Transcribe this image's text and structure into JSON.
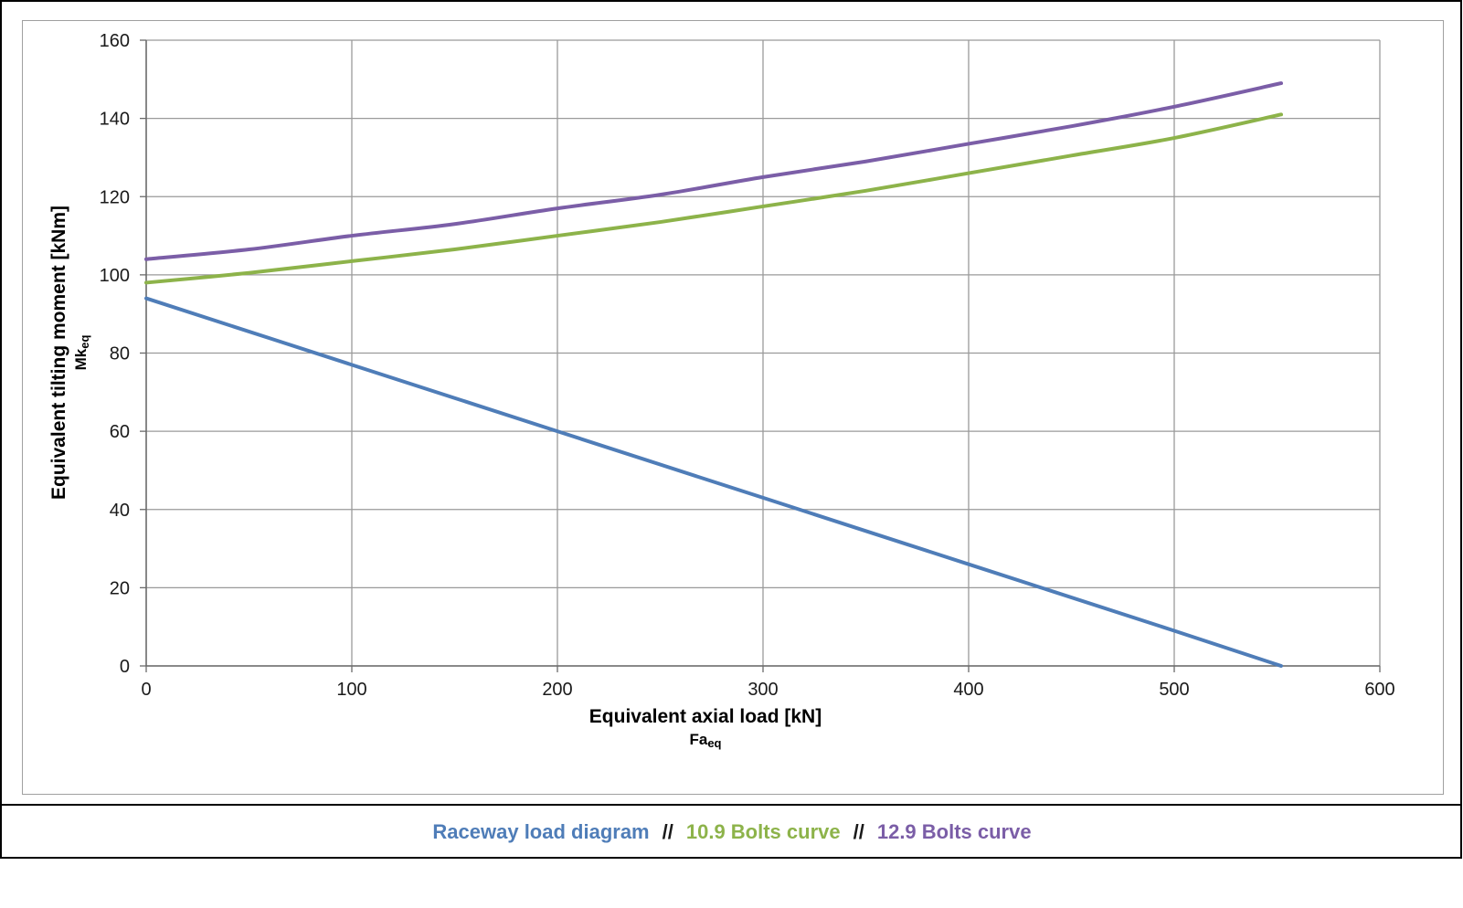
{
  "chart_data": {
    "type": "line",
    "title": "",
    "xlabel": "Equivalent axial load [kN]",
    "xlabel_sub": {
      "base": "Fa",
      "subscript": "eq"
    },
    "ylabel": "Equivalent tilting moment [kNm]",
    "ylabel_sub": {
      "base": "Mk",
      "subscript": "eq"
    },
    "xlim": [
      0,
      600
    ],
    "ylim": [
      0,
      160
    ],
    "xticks": [
      0,
      100,
      200,
      300,
      400,
      500,
      600
    ],
    "yticks": [
      0,
      20,
      40,
      60,
      80,
      100,
      120,
      140,
      160
    ],
    "grid": true,
    "legend_position": "bottom",
    "legend_separator": "//",
    "series": [
      {
        "name": "Raceway load diagram",
        "color": "#4f7db8",
        "x": [
          0,
          100,
          200,
          300,
          400,
          500,
          552
        ],
        "y": [
          94,
          77,
          60,
          43,
          26,
          9,
          0
        ]
      },
      {
        "name": "10.9 Bolts curve",
        "color": "#8db34a",
        "x": [
          0,
          50,
          100,
          150,
          200,
          250,
          300,
          350,
          400,
          450,
          500,
          552
        ],
        "y": [
          98,
          100.5,
          103.5,
          106.5,
          110,
          113.5,
          117.5,
          121.5,
          126,
          130.5,
          135,
          141
        ]
      },
      {
        "name": "12.9 Bolts curve",
        "color": "#7b5ea7",
        "x": [
          0,
          50,
          100,
          150,
          200,
          250,
          300,
          350,
          400,
          450,
          500,
          552
        ],
        "y": [
          104,
          106.5,
          110,
          113,
          117,
          120.5,
          125,
          129,
          133.5,
          138,
          143,
          149
        ]
      }
    ]
  }
}
